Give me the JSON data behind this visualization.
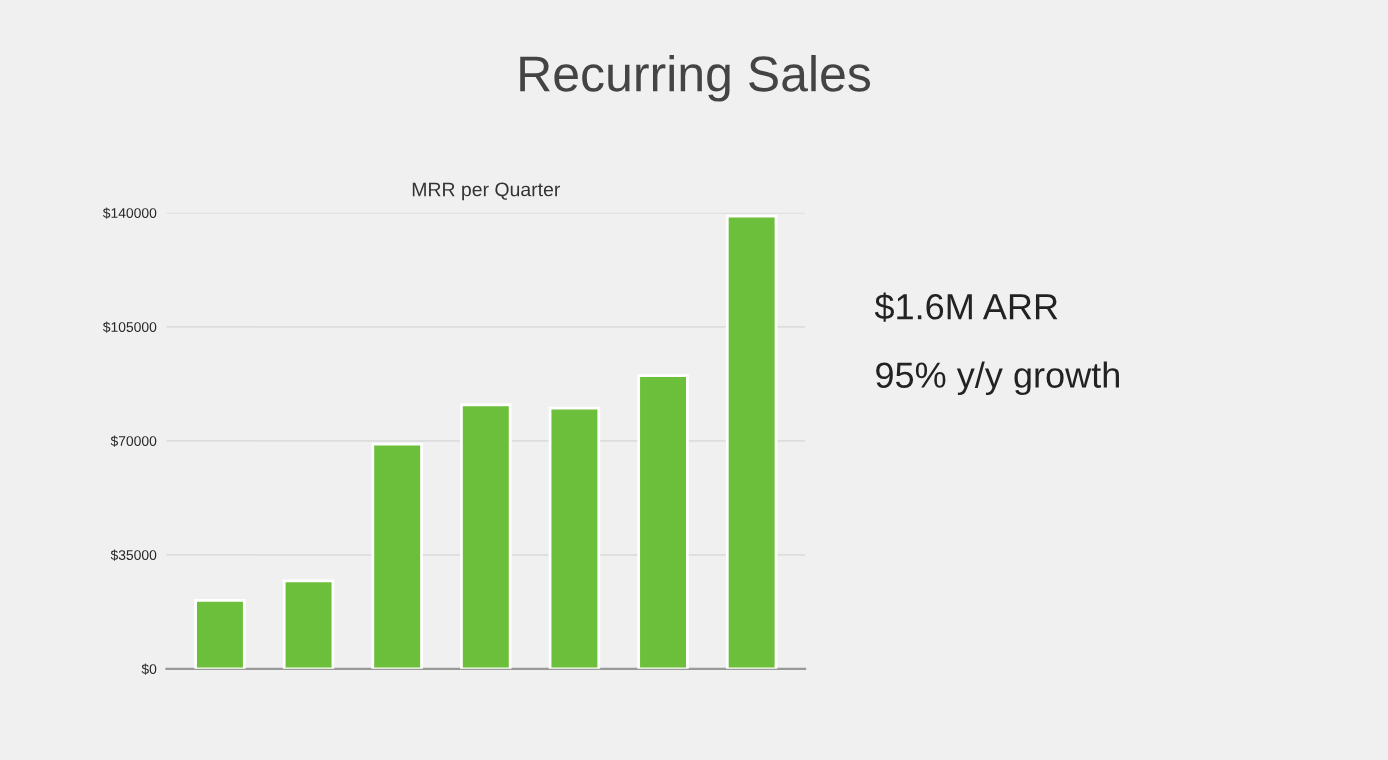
{
  "chart_data": {
    "type": "bar",
    "title": "Recurring Sales",
    "subtitle": "MRR per Quarter",
    "categories": [
      null,
      null,
      null,
      null,
      null,
      null,
      null
    ],
    "values": [
      21000,
      27000,
      69000,
      81000,
      80000,
      90000,
      139000
    ],
    "color": "#6cbf3a",
    "ylim": [
      0,
      140000
    ],
    "yticks": [
      {
        "value": 0,
        "label": "$0"
      },
      {
        "value": 35000,
        "label": "$35000"
      },
      {
        "value": 70000,
        "label": "$70000"
      },
      {
        "value": 105000,
        "label": "$105000"
      },
      {
        "value": 140000,
        "label": "$140000"
      }
    ],
    "grid": "y",
    "annotations": [
      "$1.6M ARR",
      "95% y/y growth"
    ]
  }
}
